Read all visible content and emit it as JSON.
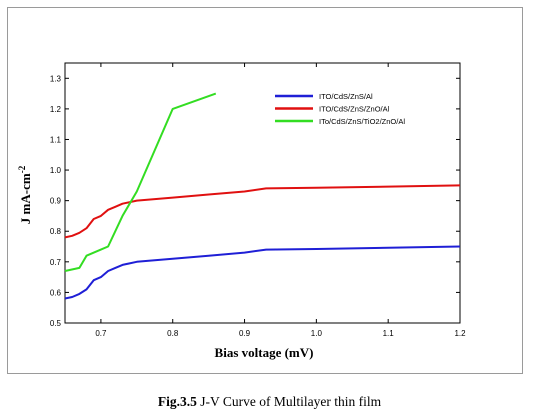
{
  "caption": {
    "figure_label": "Fig.3.5",
    "text": "J-V Curve of Multilayer thin film"
  },
  "chart_data": {
    "type": "line",
    "title": "",
    "xlabel": "Bias voltage (mV)",
    "ylabel": "J mA-cm",
    "ylabel_superscript": "-2",
    "xlim": [
      0.65,
      1.2
    ],
    "ylim": [
      0.5,
      1.35
    ],
    "xticks": [
      0.7,
      0.8,
      0.9,
      1.0,
      1.1,
      1.2
    ],
    "xtick_labels": [
      "0.7",
      "0.8",
      "0.9",
      "1.0",
      "1.1",
      "1.2"
    ],
    "yticks": [
      0.5,
      0.6,
      0.7,
      0.8,
      0.9,
      1.0,
      1.1,
      1.2,
      1.3
    ],
    "ytick_labels": [
      "0.5",
      "0.6",
      "0.7",
      "0.8",
      "0.9",
      "1.0",
      "1.1",
      "1.2",
      "1.3"
    ],
    "grid": false,
    "legend_position": "top-right",
    "series": [
      {
        "name": "ITO/CdS/ZnS/Al",
        "color": "#1f1fd6",
        "x": [
          0.65,
          0.66,
          0.67,
          0.68,
          0.69,
          0.7,
          0.71,
          0.72,
          0.73,
          0.75,
          0.8,
          0.85,
          0.9,
          0.93,
          1.0,
          1.1,
          1.2
        ],
        "y": [
          0.58,
          0.585,
          0.595,
          0.61,
          0.64,
          0.65,
          0.67,
          0.68,
          0.69,
          0.7,
          0.71,
          0.72,
          0.73,
          0.74,
          0.742,
          0.746,
          0.75
        ]
      },
      {
        "name": "ITO/CdS/ZnS/ZnO/Al",
        "color": "#e01010",
        "x": [
          0.65,
          0.66,
          0.67,
          0.68,
          0.69,
          0.7,
          0.71,
          0.72,
          0.73,
          0.75,
          0.8,
          0.85,
          0.9,
          0.93,
          1.0,
          1.1,
          1.2
        ],
        "y": [
          0.78,
          0.785,
          0.795,
          0.81,
          0.84,
          0.85,
          0.87,
          0.88,
          0.89,
          0.9,
          0.91,
          0.92,
          0.93,
          0.94,
          0.942,
          0.946,
          0.95
        ]
      },
      {
        "name": "ITo/CdS/ZnS/TiO2/ZnO/Al",
        "color": "#33dd22",
        "x": [
          0.65,
          0.67,
          0.68,
          0.7,
          0.71,
          0.73,
          0.75,
          0.8,
          0.86
        ],
        "y": [
          0.67,
          0.68,
          0.72,
          0.74,
          0.75,
          0.85,
          0.93,
          1.2,
          1.25
        ]
      }
    ]
  }
}
